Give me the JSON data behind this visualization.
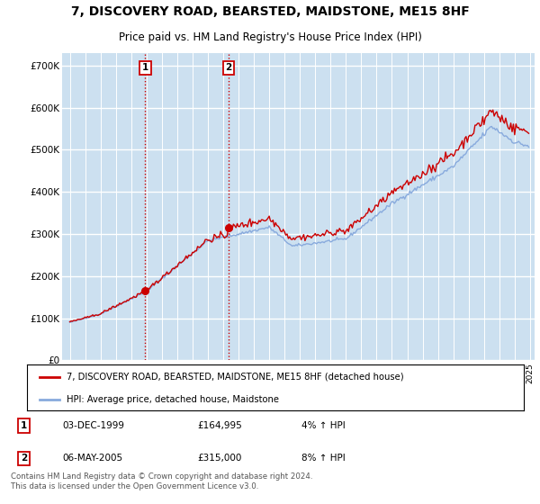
{
  "title": "7, DISCOVERY ROAD, BEARSTED, MAIDSTONE, ME15 8HF",
  "subtitle": "Price paid vs. HM Land Registry's House Price Index (HPI)",
  "title_fontsize": 10,
  "subtitle_fontsize": 8.5,
  "ylabel_ticks": [
    "£0",
    "£100K",
    "£200K",
    "£300K",
    "£400K",
    "£500K",
    "£600K",
    "£700K"
  ],
  "ytick_values": [
    0,
    100000,
    200000,
    300000,
    400000,
    500000,
    600000,
    700000
  ],
  "ylim": [
    0,
    730000
  ],
  "xlim_start": 1994.5,
  "xlim_end": 2025.3,
  "background_color": "#cce0f0",
  "plot_bg_color": "#cce0f0",
  "grid_color": "#ffffff",
  "sale1_x": 1999.92,
  "sale1_y": 164995,
  "sale2_x": 2005.35,
  "sale2_y": 315000,
  "sale1_date": "03-DEC-1999",
  "sale1_price": "£164,995",
  "sale1_hpi": "4% ↑ HPI",
  "sale2_date": "06-MAY-2005",
  "sale2_price": "£315,000",
  "sale2_hpi": "8% ↑ HPI",
  "legend_house_label": "7, DISCOVERY ROAD, BEARSTED, MAIDSTONE, ME15 8HF (detached house)",
  "legend_hpi_label": "HPI: Average price, detached house, Maidstone",
  "footnote": "Contains HM Land Registry data © Crown copyright and database right 2024.\nThis data is licensed under the Open Government Licence v3.0.",
  "house_color": "#cc0000",
  "hpi_color": "#88aadd",
  "sale_marker_color": "#cc0000",
  "vline_color": "#cc0000",
  "marker_box_color": "#cc0000"
}
